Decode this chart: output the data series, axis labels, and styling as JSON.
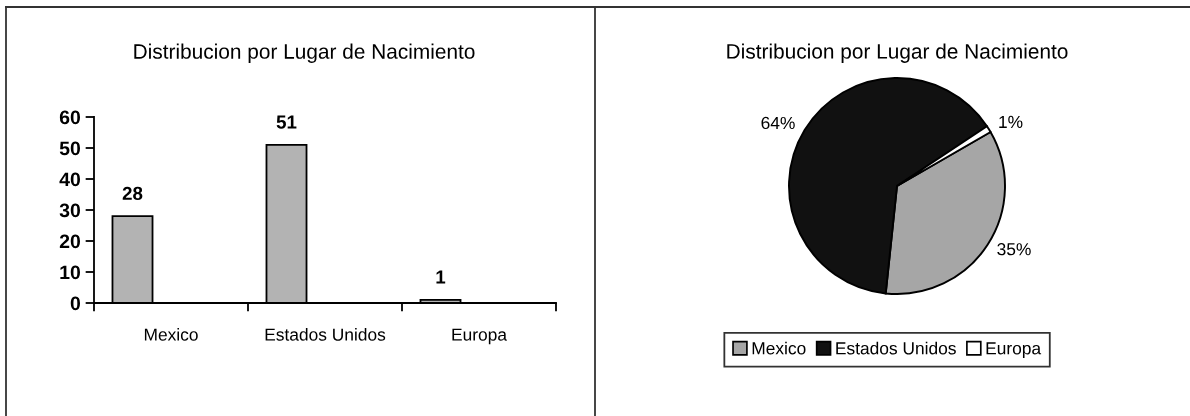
{
  "chart_data": [
    {
      "type": "bar",
      "title": "Distribucion por Lugar de Nacimiento",
      "categories": [
        "Mexico",
        "Estados Unidos",
        "Europa"
      ],
      "values": [
        28,
        51,
        1
      ],
      "color": "#b3b3b3",
      "ylim": [
        0,
        60
      ],
      "yticks": [
        0,
        10,
        20,
        30,
        40,
        50,
        60
      ],
      "data_labels": true
    },
    {
      "type": "pie",
      "title": "Distribucion por Lugar de Nacimiento",
      "categories": [
        "Mexico",
        "Estados Unidos",
        "Europa"
      ],
      "values": [
        35,
        64,
        1
      ],
      "colors": [
        "#a6a6a6",
        "#111111",
        "#ffffff"
      ],
      "value_labels": [
        "35%",
        "64%",
        "1%"
      ],
      "legend": "bottom"
    }
  ]
}
